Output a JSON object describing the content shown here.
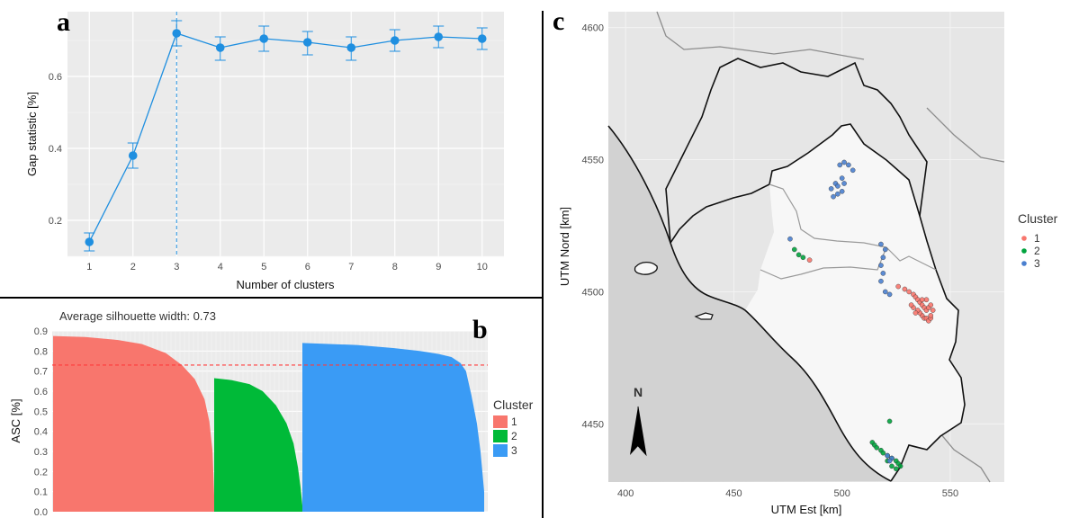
{
  "panels": {
    "a": {
      "letter": "a"
    },
    "b": {
      "letter": "b"
    },
    "c": {
      "letter": "c"
    }
  },
  "chart_data": [
    {
      "panel": "a",
      "type": "line",
      "xlabel": "Number of clusters",
      "ylabel": "Gap statistic [%]",
      "x": [
        1,
        2,
        3,
        4,
        5,
        6,
        7,
        8,
        9,
        10
      ],
      "values": [
        0.14,
        0.38,
        0.72,
        0.68,
        0.705,
        0.695,
        0.68,
        0.7,
        0.71,
        0.705
      ],
      "err_low": [
        0.115,
        0.345,
        0.685,
        0.645,
        0.67,
        0.66,
        0.645,
        0.67,
        0.68,
        0.675
      ],
      "err_high": [
        0.165,
        0.415,
        0.755,
        0.71,
        0.74,
        0.725,
        0.71,
        0.73,
        0.74,
        0.735
      ],
      "xticks": [
        "1",
        "2",
        "3",
        "4",
        "5",
        "6",
        "7",
        "8",
        "9",
        "10"
      ],
      "yticks": [
        "0.2",
        "0.4",
        "0.6"
      ],
      "ylim": [
        0.1,
        0.78
      ],
      "optimal_k": 3,
      "color": "#1f8fe0"
    },
    {
      "panel": "b",
      "type": "bar",
      "title": "Average silhouette width: 0.73",
      "ylabel": "ASC [%]",
      "average": 0.73,
      "ylim": [
        0,
        0.9
      ],
      "yticks": [
        "0.0",
        "0.1",
        "0.2",
        "0.3",
        "0.4",
        "0.5",
        "0.6",
        "0.7",
        "0.8",
        "0.9"
      ],
      "legend_title": "Cluster",
      "series": [
        {
          "name": "1",
          "color": "#f8766d",
          "profile": [
            [
              0,
              0.875
            ],
            [
              0.2,
              0.87
            ],
            [
              0.4,
              0.855
            ],
            [
              0.55,
              0.835
            ],
            [
              0.7,
              0.79
            ],
            [
              0.8,
              0.73
            ],
            [
              0.88,
              0.66
            ],
            [
              0.94,
              0.56
            ],
            [
              0.97,
              0.45
            ],
            [
              0.99,
              0.3
            ],
            [
              1,
              0.08
            ]
          ]
        },
        {
          "name": "2",
          "color": "#00ba38",
          "profile": [
            [
              0,
              0.665
            ],
            [
              0.2,
              0.655
            ],
            [
              0.4,
              0.635
            ],
            [
              0.55,
              0.6
            ],
            [
              0.7,
              0.53
            ],
            [
              0.82,
              0.44
            ],
            [
              0.9,
              0.34
            ],
            [
              0.95,
              0.22
            ],
            [
              0.98,
              0.12
            ],
            [
              1,
              0.03
            ]
          ]
        },
        {
          "name": "3",
          "color": "#3a9bf5",
          "profile": [
            [
              0,
              0.84
            ],
            [
              0.3,
              0.83
            ],
            [
              0.5,
              0.815
            ],
            [
              0.65,
              0.8
            ],
            [
              0.75,
              0.785
            ],
            [
              0.82,
              0.77
            ],
            [
              0.87,
              0.74
            ],
            [
              0.9,
              0.7
            ],
            [
              0.93,
              0.58
            ],
            [
              0.96,
              0.44
            ],
            [
              0.98,
              0.3
            ],
            [
              1,
              0.1
            ]
          ]
        }
      ]
    },
    {
      "panel": "c",
      "type": "scatter",
      "xlabel": "UTM Est [km]",
      "ylabel": "UTM Nord [km]",
      "xticks": [
        "400",
        "450",
        "500",
        "550"
      ],
      "yticks": [
        "4450",
        "4500",
        "4550",
        "4600"
      ],
      "xlim": [
        392,
        575
      ],
      "ylim": [
        4428,
        4606
      ],
      "legend_title": "Cluster",
      "north_label": "N",
      "series": [
        {
          "name": "1",
          "color": "#f8766d",
          "points": [
            [
              485,
              4512
            ],
            [
              526,
              4502
            ],
            [
              529,
              4501
            ],
            [
              531,
              4500
            ],
            [
              533,
              4499
            ],
            [
              534,
              4498
            ],
            [
              535,
              4497
            ],
            [
              536,
              4496
            ],
            [
              537,
              4495
            ],
            [
              538,
              4494
            ],
            [
              539,
              4493
            ],
            [
              540,
              4494
            ],
            [
              541,
              4495
            ],
            [
              542,
              4493
            ],
            [
              537,
              4491
            ],
            [
              538,
              4490
            ],
            [
              539,
              4490
            ],
            [
              540,
              4489
            ],
            [
              541,
              4490
            ],
            [
              536,
              4492
            ],
            [
              535,
              4493
            ],
            [
              533,
              4494
            ],
            [
              534,
              4492
            ],
            [
              532,
              4495
            ],
            [
              539,
              4497
            ],
            [
              537,
              4497
            ],
            [
              541,
              4491
            ]
          ]
        },
        {
          "name": "2",
          "color": "#00a33d",
          "points": [
            [
              478,
              4516
            ],
            [
              480,
              4514
            ],
            [
              482,
              4513
            ],
            [
              522,
              4451
            ],
            [
              514,
              4443
            ],
            [
              515,
              4442
            ],
            [
              516,
              4441
            ],
            [
              518,
              4440
            ],
            [
              519,
              4439
            ],
            [
              521,
              4438
            ],
            [
              523,
              4437
            ],
            [
              525,
              4436
            ],
            [
              526,
              4435
            ],
            [
              527,
              4434
            ],
            [
              525,
              4433
            ],
            [
              523,
              4434
            ],
            [
              521,
              4436
            ]
          ]
        },
        {
          "name": "3",
          "color": "#4a7fcf",
          "points": [
            [
              476,
              4520
            ],
            [
              499,
              4548
            ],
            [
              501,
              4549
            ],
            [
              503,
              4548
            ],
            [
              505,
              4546
            ],
            [
              500,
              4543
            ],
            [
              501,
              4541
            ],
            [
              500,
              4538
            ],
            [
              498,
              4537
            ],
            [
              496,
              4536
            ],
            [
              495,
              4539
            ],
            [
              497,
              4541
            ],
            [
              498,
              4540
            ],
            [
              518,
              4518
            ],
            [
              520,
              4516
            ],
            [
              519,
              4513
            ],
            [
              518,
              4510
            ],
            [
              519,
              4507
            ],
            [
              518,
              4504
            ],
            [
              520,
              4500
            ],
            [
              522,
              4499
            ],
            [
              521,
              4438
            ],
            [
              523,
              4437
            ],
            [
              522,
              4436
            ]
          ]
        }
      ]
    }
  ]
}
